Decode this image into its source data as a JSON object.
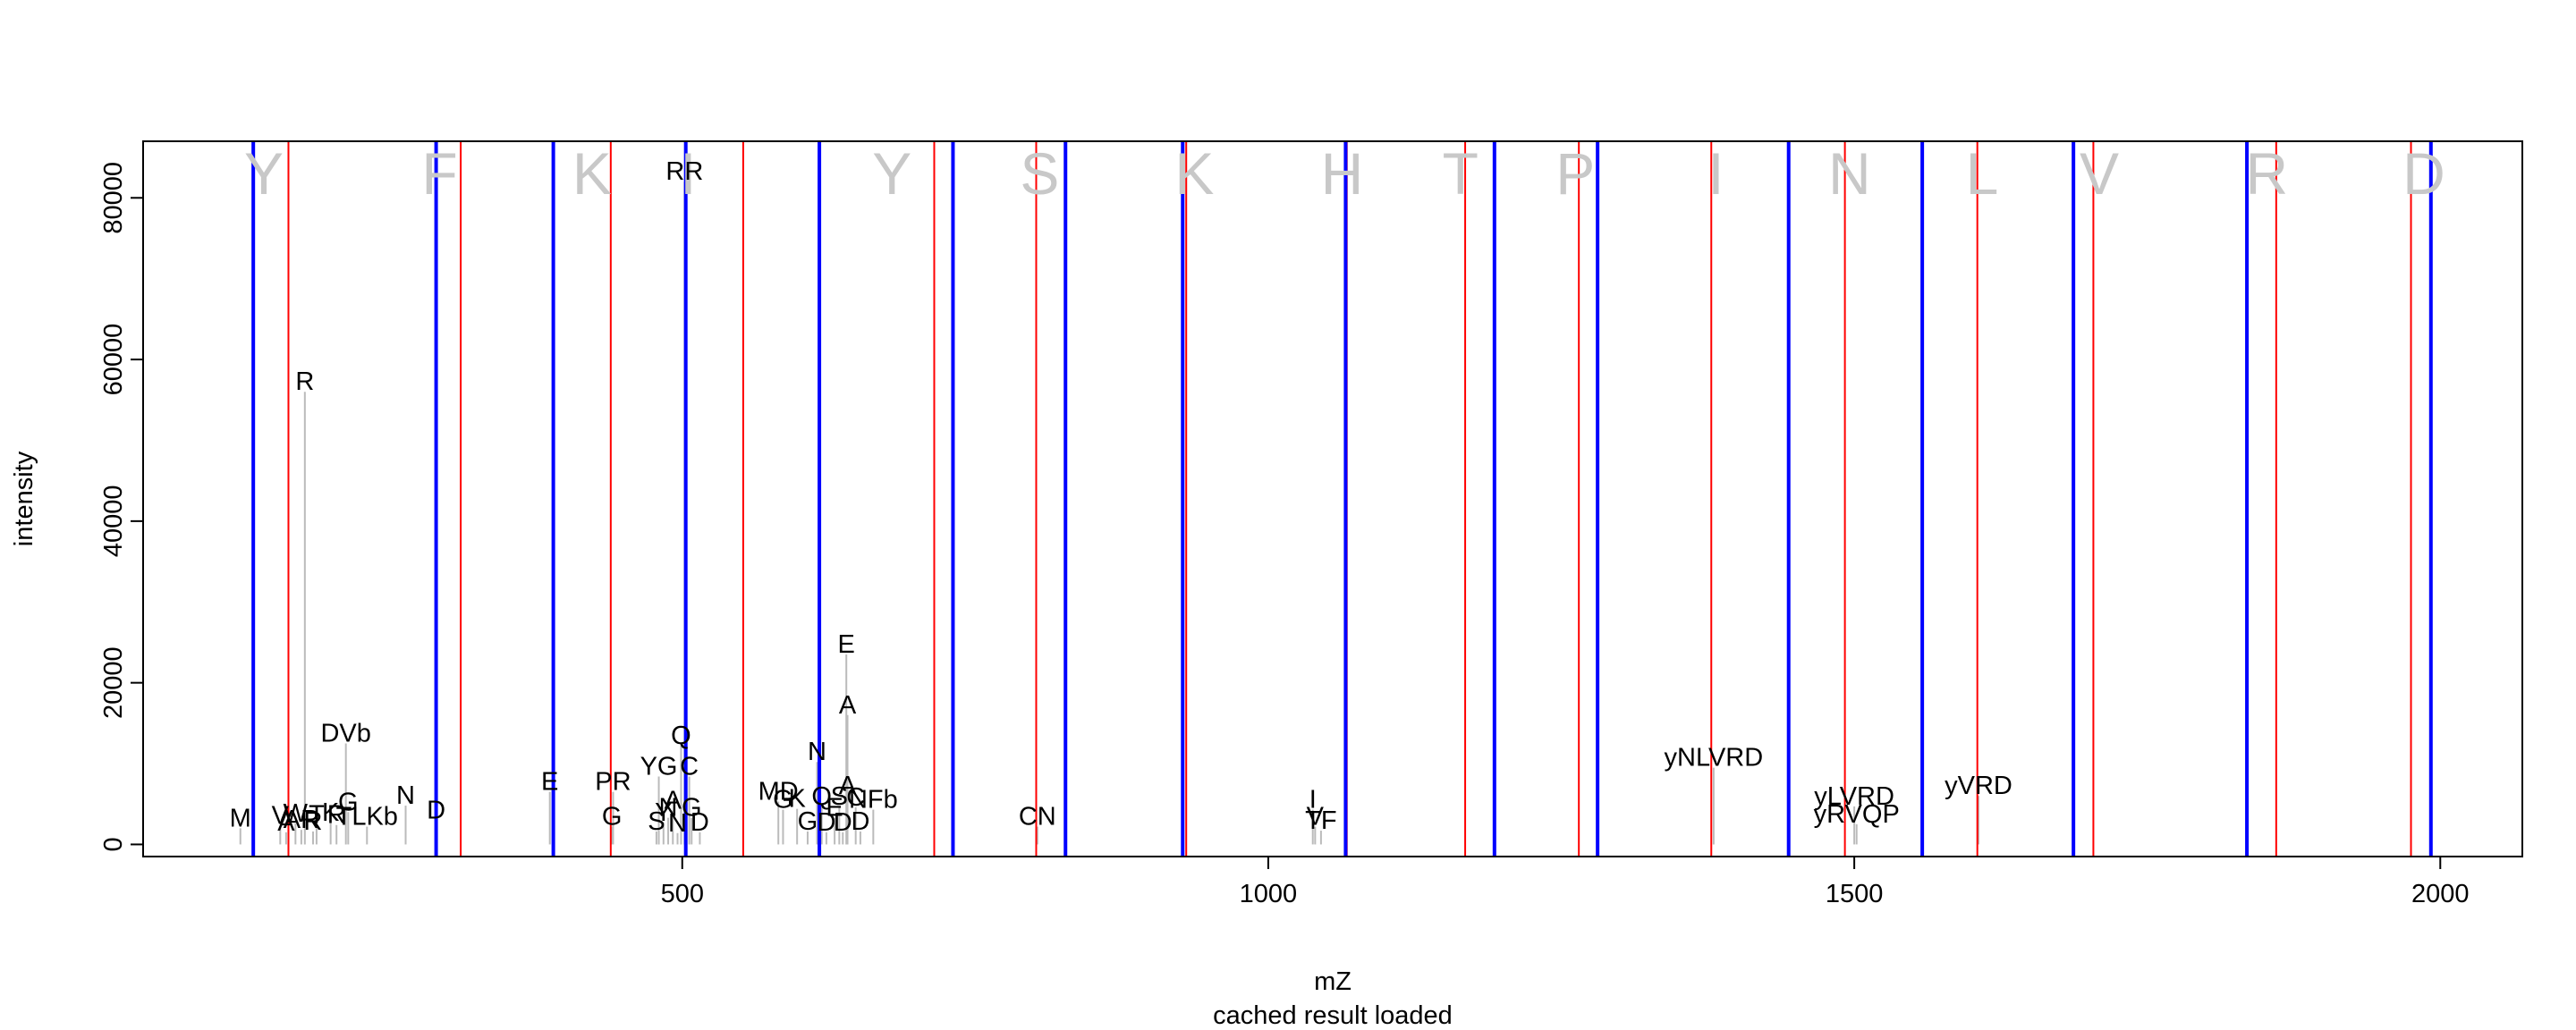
{
  "chart_data": {
    "type": "scatter",
    "title": "",
    "xlabel": "mZ",
    "ylabel": "intensity",
    "subtitle": "cached result loaded",
    "xlim": [
      40,
      2070
    ],
    "ylim": [
      -1500,
      87000
    ],
    "x_ticks": [
      500,
      1000,
      1500,
      2000
    ],
    "y_ticks": [
      0,
      20000,
      40000,
      60000,
      80000
    ],
    "grid": false,
    "colors": {
      "peak": "#bbbbbb",
      "b_ions": "#ff0000",
      "y_ions": "#0000ff",
      "sequence": "#c8c8c8"
    },
    "sequence": [
      "Y",
      "F",
      "K",
      "I",
      "Y",
      "S",
      "K",
      "H",
      "T",
      "P",
      "I",
      "N",
      "L",
      "V",
      "R",
      "D"
    ],
    "sequence_x": [
      143,
      293,
      423,
      505,
      679,
      805,
      937,
      1063,
      1164,
      1262,
      1382,
      1496,
      1609,
      1709,
      1852,
      1986
    ],
    "b_ion_lines": [
      164,
      311,
      439,
      552,
      715,
      802,
      930,
      1067,
      1168,
      1265,
      1378,
      1492,
      1605,
      1704,
      1860,
      1975
    ],
    "y_ion_lines": [
      134,
      290,
      390,
      503,
      617,
      731,
      827,
      927,
      1066,
      1193,
      1281,
      1444,
      1558,
      1687,
      1835,
      1992
    ],
    "peaks": [
      {
        "mz": 123,
        "intensity": 2000,
        "label": "M"
      },
      {
        "mz": 157,
        "intensity": 2300,
        "label": "V"
      },
      {
        "mz": 162,
        "intensity": 1500,
        "label": "A"
      },
      {
        "mz": 170,
        "intensity": 2600,
        "label": "W"
      },
      {
        "mz": 175,
        "intensity": 1800,
        "label": "AR"
      },
      {
        "mz": 178,
        "intensity": 56000,
        "label": "R"
      },
      {
        "mz": 185,
        "intensity": 1600,
        "label": "R"
      },
      {
        "mz": 188,
        "intensity": 2400,
        "label": "T"
      },
      {
        "mz": 200,
        "intensity": 2700,
        "label": "K"
      },
      {
        "mz": 205,
        "intensity": 2400,
        "label": "R"
      },
      {
        "mz": 213,
        "intensity": 12500,
        "label": "DVb"
      },
      {
        "mz": 215,
        "intensity": 4000,
        "label": "G"
      },
      {
        "mz": 231,
        "intensity": 2200,
        "label": "TLKb"
      },
      {
        "mz": 264,
        "intensity": 4800,
        "label": "N"
      },
      {
        "mz": 290,
        "intensity": 3000,
        "label": "D"
      },
      {
        "mz": 387,
        "intensity": 6500,
        "label": "E"
      },
      {
        "mz": 440,
        "intensity": 2200,
        "label": "G"
      },
      {
        "mz": 441,
        "intensity": 6500,
        "label": "PR"
      },
      {
        "mz": 478,
        "intensity": 1600,
        "label": "S"
      },
      {
        "mz": 480,
        "intensity": 8400,
        "label": "YG"
      },
      {
        "mz": 484,
        "intensity": 2700,
        "label": "Y"
      },
      {
        "mz": 488,
        "intensity": 3300,
        "label": "N"
      },
      {
        "mz": 492,
        "intensity": 4200,
        "label": "A"
      },
      {
        "mz": 496,
        "intensity": 1400,
        "label": "N"
      },
      {
        "mz": 499,
        "intensity": 12200,
        "label": "Q"
      },
      {
        "mz": 502,
        "intensity": 82000,
        "label": "RR"
      },
      {
        "mz": 506,
        "intensity": 8400,
        "label": "C"
      },
      {
        "mz": 508,
        "intensity": 3300,
        "label": "G"
      },
      {
        "mz": 515,
        "intensity": 1500,
        "label": "D"
      },
      {
        "mz": 582,
        "intensity": 5300,
        "label": "MD"
      },
      {
        "mz": 586,
        "intensity": 4300,
        "label": "G"
      },
      {
        "mz": 598,
        "intensity": 4400,
        "label": "K"
      },
      {
        "mz": 607,
        "intensity": 1600,
        "label": "G"
      },
      {
        "mz": 615,
        "intensity": 10200,
        "label": "N"
      },
      {
        "mz": 619,
        "intensity": 4700,
        "label": "Q"
      },
      {
        "mz": 623,
        "intensity": 1500,
        "label": "D"
      },
      {
        "mz": 630,
        "intensity": 3300,
        "label": "E"
      },
      {
        "mz": 634,
        "intensity": 4700,
        "label": "S"
      },
      {
        "mz": 637,
        "intensity": 1500,
        "label": "D"
      },
      {
        "mz": 640,
        "intensity": 23500,
        "label": "E"
      },
      {
        "mz": 641,
        "intensity": 16000,
        "label": "A"
      },
      {
        "mz": 641,
        "intensity": 6000,
        "label": "A"
      },
      {
        "mz": 648,
        "intensity": 4600,
        "label": "C"
      },
      {
        "mz": 652,
        "intensity": 1600,
        "label": "D"
      },
      {
        "mz": 663,
        "intensity": 4300,
        "label": "NFb"
      },
      {
        "mz": 803,
        "intensity": 2200,
        "label": "CN"
      },
      {
        "mz": 1038,
        "intensity": 4300,
        "label": "I"
      },
      {
        "mz": 1040,
        "intensity": 2200,
        "label": "V"
      },
      {
        "mz": 1045,
        "intensity": 1700,
        "label": "TF"
      },
      {
        "mz": 1380,
        "intensity": 9500,
        "label": "yNLVRD"
      },
      {
        "mz": 1500,
        "intensity": 4700,
        "label": "yLVRD"
      },
      {
        "mz": 1502,
        "intensity": 2500,
        "label": "yRVQP"
      },
      {
        "mz": 1606,
        "intensity": 6000,
        "label": "yVRD"
      }
    ]
  }
}
